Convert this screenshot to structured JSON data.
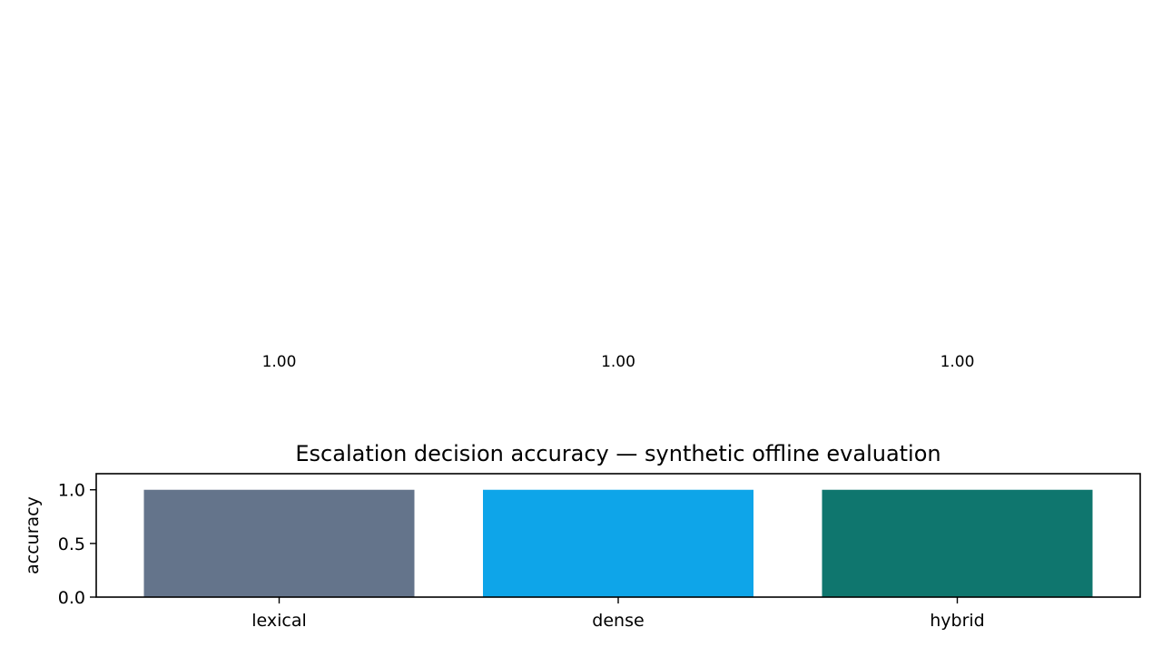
{
  "chart_data": {
    "type": "bar",
    "title": "Escalation decision accuracy — synthetic offline evaluation",
    "xlabel": "",
    "ylabel": "accuracy",
    "categories": [
      "lexical",
      "dense",
      "hybrid"
    ],
    "values": [
      1.0,
      1.0,
      1.0
    ],
    "value_labels": [
      "1.00",
      "1.00",
      "1.00"
    ],
    "colors": [
      "#64748b",
      "#0ea5e9",
      "#0f766e"
    ],
    "ylim": [
      0,
      1.15
    ],
    "yticks": [
      0.0,
      0.5,
      1.0
    ],
    "ytick_labels": [
      "0.0",
      "0.5",
      "1.0"
    ],
    "grid": false,
    "legend": "none"
  }
}
